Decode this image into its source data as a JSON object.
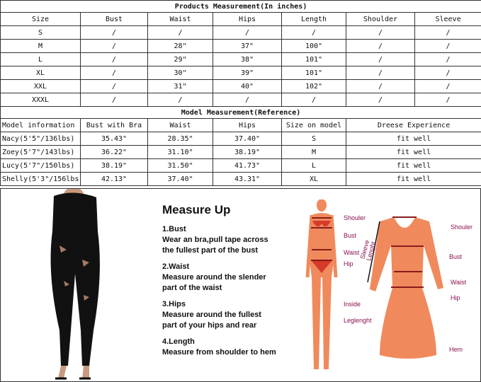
{
  "products": {
    "title": "Products Measurement(In inches)",
    "headers": [
      "Size",
      "Bust",
      "Waist",
      "Hips",
      "Length",
      "Shoulder",
      "Sleeve"
    ],
    "rows": [
      [
        "S",
        "/",
        "/",
        "/",
        "/",
        "/",
        "/"
      ],
      [
        "M",
        "/",
        "28\"",
        "37\"",
        "100\"",
        "/",
        "/"
      ],
      [
        "L",
        "/",
        "29\"",
        "38\"",
        "101\"",
        "/",
        "/"
      ],
      [
        "XL",
        "/",
        "30\"",
        "39\"",
        "101\"",
        "/",
        "/"
      ],
      [
        "XXL",
        "/",
        "31\"",
        "40\"",
        "102\"",
        "/",
        "/"
      ],
      [
        "XXXL",
        "/",
        "/",
        "/",
        "/",
        "/",
        "/"
      ]
    ]
  },
  "model": {
    "title": "Model Measurement(Reference)",
    "headers": [
      "Model information",
      "Bust with Bra",
      "Waist",
      "Hips",
      "Size on model",
      "Dreese Experience"
    ],
    "rows": [
      [
        "Nacy(5'5\"/136lbs)",
        "35.43\"",
        "28.35\"",
        "37.40\"",
        "S",
        "fit well"
      ],
      [
        "Zoey(5'7\"/143lbs)",
        "36.22\"",
        "31.10\"",
        "38.19\"",
        "M",
        "fit well"
      ],
      [
        "Lucy(5'7\"/150lbs)",
        "38.19\"",
        "31.50\"",
        "41.73\"",
        "L",
        "fit well"
      ],
      [
        "Shelly(5'3\"/156lbs)",
        "42.13\"",
        "37.40\"",
        "43.31\"",
        "XL",
        "fit well"
      ]
    ]
  },
  "guide": {
    "title": "Measure Up",
    "sections": [
      {
        "head": "1.Bust",
        "lines": [
          "Wear an bra,pull tape across",
          "the fullest part of the bust"
        ]
      },
      {
        "head": "2.Waist",
        "lines": [
          "Measure around the slender",
          "part of the waist"
        ]
      },
      {
        "head": "3.Hips",
        "lines": [
          "Measure around the fullest",
          "part of your hips and rear"
        ]
      },
      {
        "head": "4.Length",
        "lines": [
          "Measure from shoulder to hem"
        ]
      }
    ]
  },
  "body_labels": {
    "shoulder": "Shouler",
    "bust": "Bust",
    "waist": "Waist",
    "hip": "Hip",
    "inside": "Inside",
    "leg": "Leglenght"
  },
  "dress_labels": {
    "shoulder": "Shouler",
    "bust": "Bust",
    "waist": "Waist",
    "hip": "Hip",
    "hem": "Hem",
    "sleeve1": "Sleeve",
    "sleeve2": "Lenght"
  },
  "colors": {
    "figure": "#f08a5d",
    "lines": "#8a1a1a",
    "label": "#8a1050"
  }
}
